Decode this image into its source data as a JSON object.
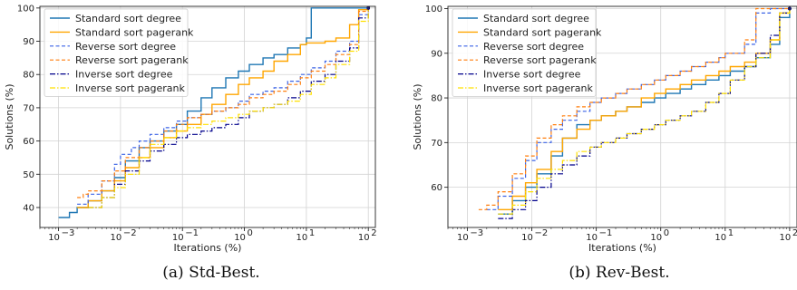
{
  "colors": {
    "standard_degree": "#1f77b4",
    "standard_pagerank": "#ffa600",
    "reverse_degree": "#3b63e6",
    "reverse_pagerank": "#ff7f0e",
    "inverse_degree": "#00008b",
    "inverse_pagerank": "#ffe000",
    "grid": "#d3d3d3"
  },
  "legend_labels": [
    "Standard sort degree",
    "Standard sort pagerank",
    "Reverse sort degree",
    "Reverse sort pagerank",
    "Inverse sort degree",
    "Inverse sort pagerank"
  ],
  "chart_data": [
    {
      "type": "line",
      "caption": "(a)  Std-Best.",
      "xlabel": "Iterations (%)",
      "ylabel": "Solutions (%)",
      "xscale": "log",
      "xlim": [
        0.0005,
        130
      ],
      "ylim": [
        34,
        100.5
      ],
      "xtick_labels": [
        {
          "base": "10",
          "exp": "−3"
        },
        {
          "base": "10",
          "exp": "−2"
        },
        {
          "base": "10",
          "exp": "−1"
        },
        {
          "base": "10",
          "exp": "0"
        },
        {
          "base": "10",
          "exp": "1"
        },
        {
          "base": "10",
          "exp": "2"
        }
      ],
      "yticks": [
        40,
        50,
        60,
        70,
        80,
        90,
        100
      ],
      "grid": true,
      "legend_position": "top-left",
      "series": [
        {
          "name": "Standard sort degree",
          "x": [
            0.001,
            0.0015,
            0.002,
            0.003,
            0.005,
            0.008,
            0.012,
            0.02,
            0.03,
            0.05,
            0.08,
            0.12,
            0.2,
            0.3,
            0.5,
            0.8,
            1.2,
            2,
            3,
            5,
            8,
            10,
            12,
            15,
            100
          ],
          "y": [
            37,
            38.5,
            40,
            42,
            45,
            49,
            54,
            58,
            60,
            63,
            65,
            69,
            73,
            76,
            79,
            81,
            83,
            85,
            86,
            88,
            89,
            91,
            100,
            100,
            100
          ]
        },
        {
          "name": "Standard sort pagerank",
          "x": [
            0.002,
            0.003,
            0.005,
            0.008,
            0.012,
            0.02,
            0.03,
            0.05,
            0.08,
            0.12,
            0.2,
            0.3,
            0.5,
            0.8,
            1.2,
            2,
            3,
            5,
            8,
            10,
            20,
            30,
            50,
            70,
            100
          ],
          "y": [
            40,
            42,
            45,
            48,
            52,
            55,
            58,
            61,
            63,
            65,
            68,
            71,
            74,
            77,
            79,
            81,
            84,
            86,
            89,
            89.5,
            90,
            91,
            95,
            99.5,
            100
          ]
        },
        {
          "name": "Reverse sort degree",
          "x": [
            0.002,
            0.003,
            0.005,
            0.008,
            0.01,
            0.015,
            0.02,
            0.03,
            0.05,
            0.08,
            0.12,
            0.2,
            0.3,
            0.5,
            0.8,
            1.2,
            2,
            3,
            5,
            8,
            12,
            20,
            30,
            50,
            70,
            100
          ],
          "y": [
            41,
            44,
            48,
            53,
            56,
            58,
            60,
            62,
            64,
            66,
            67,
            68,
            69,
            70,
            72,
            74,
            75,
            76,
            78,
            80,
            82,
            84,
            87,
            90,
            98,
            100
          ]
        },
        {
          "name": "Reverse sort pagerank",
          "x": [
            0.002,
            0.0025,
            0.003,
            0.005,
            0.008,
            0.012,
            0.02,
            0.03,
            0.05,
            0.08,
            0.12,
            0.2,
            0.3,
            0.5,
            0.8,
            1.2,
            2,
            3,
            5,
            8,
            12,
            20,
            30,
            50,
            70,
            100
          ],
          "y": [
            43,
            44,
            45,
            48,
            51,
            55,
            58,
            60,
            63,
            65,
            67,
            68,
            69,
            70,
            71,
            73,
            74,
            75,
            77,
            79,
            81,
            83,
            86,
            89,
            99,
            100
          ]
        },
        {
          "name": "Inverse sort degree",
          "x": [
            0.003,
            0.005,
            0.008,
            0.012,
            0.02,
            0.03,
            0.05,
            0.08,
            0.12,
            0.2,
            0.3,
            0.5,
            0.8,
            1.2,
            2,
            3,
            5,
            8,
            12,
            20,
            30,
            50,
            70,
            100
          ],
          "y": [
            40,
            43,
            47,
            51,
            54,
            57,
            59,
            61,
            62,
            63,
            64,
            65,
            67,
            69,
            70,
            71,
            73,
            75,
            78,
            80,
            84,
            88,
            97,
            100
          ]
        },
        {
          "name": "Inverse sort pagerank",
          "x": [
            0.003,
            0.005,
            0.008,
            0.012,
            0.02,
            0.03,
            0.05,
            0.08,
            0.12,
            0.2,
            0.3,
            0.5,
            0.8,
            1.2,
            2,
            3,
            5,
            8,
            12,
            20,
            30,
            50,
            70,
            100
          ],
          "y": [
            40,
            43,
            46,
            50,
            55,
            59,
            61,
            63,
            64,
            65,
            66,
            67,
            68,
            69,
            70,
            71,
            72,
            74,
            77,
            79,
            83,
            87,
            96,
            100
          ]
        }
      ]
    },
    {
      "type": "line",
      "caption": "(b)  Rev-Best.",
      "xlabel": "Iterations (%)",
      "ylabel": "Solutions (%)",
      "xscale": "log",
      "xlim": [
        0.0005,
        130
      ],
      "ylim": [
        51,
        100.5
      ],
      "xtick_labels": [
        {
          "base": "10",
          "exp": "−3"
        },
        {
          "base": "10",
          "exp": "−2"
        },
        {
          "base": "10",
          "exp": "−1"
        },
        {
          "base": "10",
          "exp": "0"
        },
        {
          "base": "10",
          "exp": "1"
        },
        {
          "base": "10",
          "exp": "2"
        }
      ],
      "yticks": [
        60,
        70,
        80,
        90,
        100
      ],
      "grid": true,
      "legend_position": "top-left",
      "series": [
        {
          "name": "Standard sort degree",
          "x": [
            0.003,
            0.005,
            0.008,
            0.012,
            0.02,
            0.03,
            0.05,
            0.08,
            0.12,
            0.2,
            0.3,
            0.5,
            0.8,
            1.2,
            2,
            3,
            5,
            8,
            12,
            20,
            30,
            50,
            70,
            100
          ],
          "y": [
            54,
            57,
            60,
            63,
            67,
            71,
            74,
            75,
            76,
            77,
            78,
            79,
            80,
            81,
            82,
            83,
            84,
            85,
            86,
            87,
            89,
            92,
            98,
            100
          ]
        },
        {
          "name": "Standard sort pagerank",
          "x": [
            0.003,
            0.005,
            0.008,
            0.012,
            0.02,
            0.03,
            0.05,
            0.08,
            0.12,
            0.2,
            0.3,
            0.5,
            0.8,
            1.2,
            2,
            3,
            5,
            8,
            12,
            20,
            30,
            50,
            70,
            100
          ],
          "y": [
            55,
            58,
            61,
            64,
            68,
            71,
            73,
            75,
            76,
            77,
            78,
            80,
            81,
            82,
            83,
            84,
            85,
            86,
            87,
            88,
            90,
            93,
            99,
            100
          ]
        },
        {
          "name": "Reverse sort degree",
          "x": [
            0.002,
            0.003,
            0.005,
            0.008,
            0.012,
            0.02,
            0.03,
            0.05,
            0.08,
            0.12,
            0.2,
            0.3,
            0.5,
            0.8,
            1.2,
            2,
            3,
            5,
            8,
            10,
            20,
            30,
            50,
            100
          ],
          "y": [
            55,
            58,
            62,
            66,
            70,
            73,
            75,
            77,
            79,
            80,
            81,
            82,
            83,
            84,
            85,
            86,
            87,
            88,
            89,
            90,
            92,
            99,
            100,
            100
          ]
        },
        {
          "name": "Reverse sort pagerank",
          "x": [
            0.0015,
            0.002,
            0.003,
            0.005,
            0.008,
            0.012,
            0.02,
            0.03,
            0.05,
            0.08,
            0.12,
            0.2,
            0.3,
            0.5,
            0.8,
            1.2,
            2,
            3,
            5,
            8,
            10,
            20,
            30,
            50,
            100
          ],
          "y": [
            55,
            56,
            59,
            63,
            67,
            71,
            74,
            76,
            78,
            79,
            80,
            81,
            82,
            83,
            84,
            85,
            86,
            87,
            88,
            89,
            90,
            93,
            100,
            100,
            100
          ]
        },
        {
          "name": "Inverse sort degree",
          "x": [
            0.003,
            0.005,
            0.008,
            0.012,
            0.02,
            0.03,
            0.05,
            0.08,
            0.12,
            0.2,
            0.3,
            0.5,
            0.8,
            1.2,
            2,
            3,
            5,
            8,
            12,
            20,
            30,
            50,
            70,
            100
          ],
          "y": [
            53,
            55,
            57,
            60,
            63,
            65,
            67,
            69,
            70,
            71,
            72,
            73,
            74,
            75,
            76,
            77,
            79,
            81,
            84,
            87,
            90,
            94,
            99,
            100
          ]
        },
        {
          "name": "Inverse sort pagerank",
          "x": [
            0.003,
            0.005,
            0.008,
            0.012,
            0.02,
            0.03,
            0.05,
            0.08,
            0.12,
            0.2,
            0.3,
            0.5,
            0.8,
            1.2,
            2,
            3,
            5,
            8,
            12,
            20,
            30,
            50,
            70,
            100
          ],
          "y": [
            54,
            56,
            59,
            62,
            64,
            66,
            68,
            69,
            70,
            71,
            72,
            73,
            74,
            75,
            76,
            77,
            79,
            81,
            84,
            87,
            89,
            93,
            99,
            100
          ]
        }
      ]
    }
  ]
}
